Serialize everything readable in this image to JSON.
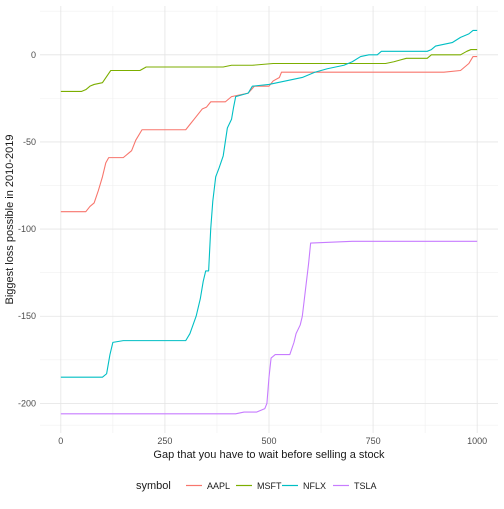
{
  "chart_data": {
    "type": "line",
    "title": "",
    "xlabel": "Gap that you have to wait before selling a stock",
    "ylabel": "Biggest loss possible in 2010-2019",
    "xlim": [
      -50,
      1050
    ],
    "ylim": [
      -217,
      28
    ],
    "x_ticks": [
      0,
      250,
      500,
      750,
      1000
    ],
    "y_ticks": [
      0,
      -50,
      -100,
      -150,
      -200
    ],
    "x_tick_labels": [
      "0",
      "250",
      "500",
      "750",
      "1000"
    ],
    "y_tick_labels": [
      "0",
      "-50",
      "-100",
      "-150",
      "-200"
    ],
    "grid": true,
    "legend_position": "bottom",
    "legend_title": "symbol",
    "series": [
      {
        "name": "AAPL",
        "color": "#F8766D",
        "points": [
          [
            0,
            -90
          ],
          [
            60,
            -90
          ],
          [
            70,
            -87
          ],
          [
            80,
            -85
          ],
          [
            90,
            -78
          ],
          [
            100,
            -70
          ],
          [
            108,
            -62
          ],
          [
            115,
            -59
          ],
          [
            150,
            -59
          ],
          [
            170,
            -55
          ],
          [
            180,
            -49
          ],
          [
            195,
            -43
          ],
          [
            300,
            -43
          ],
          [
            310,
            -40
          ],
          [
            320,
            -37
          ],
          [
            330,
            -34
          ],
          [
            340,
            -31
          ],
          [
            350,
            -30
          ],
          [
            360,
            -27
          ],
          [
            395,
            -27
          ],
          [
            410,
            -24
          ],
          [
            430,
            -23
          ],
          [
            450,
            -22
          ],
          [
            465,
            -18
          ],
          [
            500,
            -18
          ],
          [
            510,
            -15
          ],
          [
            525,
            -13
          ],
          [
            530,
            -10
          ],
          [
            720,
            -10
          ],
          [
            750,
            -10
          ],
          [
            920,
            -10
          ],
          [
            960,
            -9
          ],
          [
            980,
            -5
          ],
          [
            990,
            -1
          ],
          [
            1000,
            -1
          ]
        ]
      },
      {
        "name": "MSFT",
        "color": "#7CAE00",
        "points": [
          [
            0,
            -21
          ],
          [
            50,
            -21
          ],
          [
            60,
            -20
          ],
          [
            70,
            -18
          ],
          [
            80,
            -17
          ],
          [
            100,
            -16
          ],
          [
            120,
            -9
          ],
          [
            190,
            -9
          ],
          [
            205,
            -7
          ],
          [
            390,
            -7
          ],
          [
            410,
            -6
          ],
          [
            460,
            -6
          ],
          [
            510,
            -5
          ],
          [
            650,
            -5
          ],
          [
            780,
            -5
          ],
          [
            800,
            -4
          ],
          [
            815,
            -3
          ],
          [
            830,
            -2
          ],
          [
            880,
            -2
          ],
          [
            890,
            0
          ],
          [
            960,
            0
          ],
          [
            975,
            2
          ],
          [
            985,
            3
          ],
          [
            1000,
            3
          ]
        ]
      },
      {
        "name": "NFLX",
        "color": "#00BFC4",
        "points": [
          [
            0,
            -185
          ],
          [
            100,
            -185
          ],
          [
            110,
            -183
          ],
          [
            118,
            -172
          ],
          [
            125,
            -165
          ],
          [
            150,
            -164
          ],
          [
            300,
            -164
          ],
          [
            310,
            -160
          ],
          [
            325,
            -150
          ],
          [
            335,
            -140
          ],
          [
            342,
            -130
          ],
          [
            348,
            -124
          ],
          [
            355,
            -124
          ],
          [
            360,
            -100
          ],
          [
            365,
            -84
          ],
          [
            372,
            -70
          ],
          [
            380,
            -65
          ],
          [
            390,
            -58
          ],
          [
            400,
            -42
          ],
          [
            410,
            -37
          ],
          [
            415,
            -30
          ],
          [
            420,
            -24
          ],
          [
            450,
            -22
          ],
          [
            460,
            -18
          ],
          [
            500,
            -17
          ],
          [
            540,
            -15
          ],
          [
            580,
            -13
          ],
          [
            610,
            -10
          ],
          [
            640,
            -8
          ],
          [
            680,
            -6
          ],
          [
            700,
            -4
          ],
          [
            720,
            -1
          ],
          [
            740,
            0
          ],
          [
            760,
            0
          ],
          [
            770,
            2
          ],
          [
            850,
            2
          ],
          [
            880,
            2
          ],
          [
            890,
            3
          ],
          [
            900,
            5
          ],
          [
            920,
            6
          ],
          [
            940,
            7
          ],
          [
            960,
            10
          ],
          [
            980,
            12
          ],
          [
            990,
            14
          ],
          [
            1000,
            14
          ]
        ]
      },
      {
        "name": "TSLA",
        "color": "#C77CFF",
        "points": [
          [
            0,
            -206
          ],
          [
            420,
            -206
          ],
          [
            440,
            -205
          ],
          [
            470,
            -205
          ],
          [
            490,
            -203
          ],
          [
            495,
            -200
          ],
          [
            500,
            -185
          ],
          [
            505,
            -174
          ],
          [
            515,
            -172
          ],
          [
            550,
            -172
          ],
          [
            560,
            -165
          ],
          [
            565,
            -160
          ],
          [
            575,
            -155
          ],
          [
            580,
            -150
          ],
          [
            585,
            -140
          ],
          [
            590,
            -130
          ],
          [
            595,
            -120
          ],
          [
            600,
            -108
          ],
          [
            700,
            -107
          ],
          [
            800,
            -107
          ],
          [
            1000,
            -107
          ]
        ]
      }
    ]
  }
}
